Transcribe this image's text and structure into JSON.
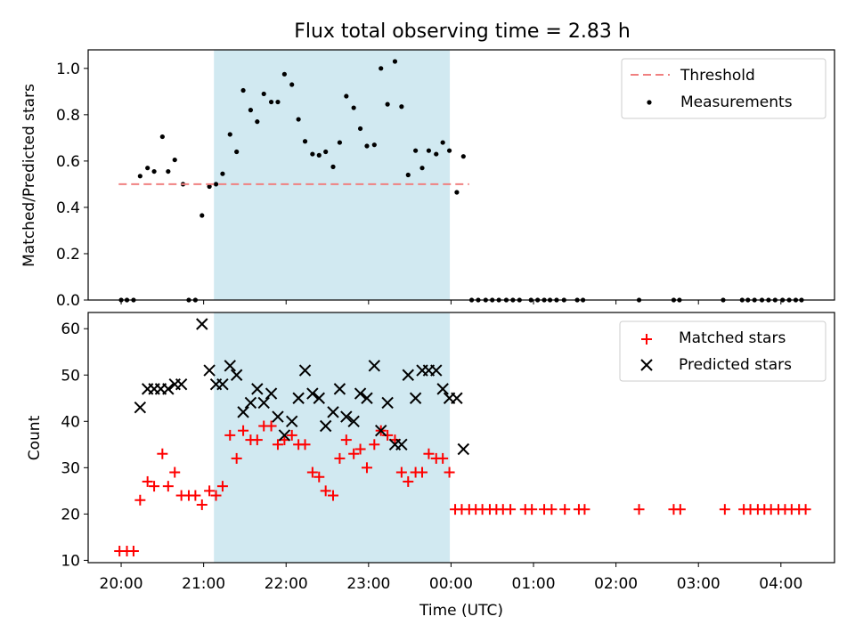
{
  "title": "Flux total observing time = 2.83 h",
  "colors": {
    "threshold": "#f08080",
    "measurements": "#000000",
    "matched": "#ff0000",
    "predicted": "#000000",
    "shade": "#add8e6"
  },
  "chart_data": [
    {
      "type": "scatter",
      "ylabel": "Matched/Predicted stars",
      "ylim": [
        0,
        1.08
      ],
      "yticks": [
        "0.0",
        "0.2",
        "0.4",
        "0.6",
        "0.8",
        "1.0"
      ],
      "legend_position": "top-right",
      "shaded_interval_hours": [
        21.13,
        23.98
      ],
      "threshold": {
        "name": "Threshold",
        "value": 0.5,
        "x_range": [
          19.97,
          24.22
        ]
      },
      "series": [
        {
          "name": "Measurements",
          "points": [
            [
              20.0,
              0
            ],
            [
              20.07,
              0
            ],
            [
              20.15,
              0
            ],
            [
              20.23,
              0.535
            ],
            [
              20.32,
              0.57
            ],
            [
              20.4,
              0.555
            ],
            [
              20.5,
              0.705
            ],
            [
              20.57,
              0.555
            ],
            [
              20.65,
              0.605
            ],
            [
              20.75,
              0.5
            ],
            [
              20.82,
              0
            ],
            [
              20.9,
              0
            ],
            [
              20.98,
              0.365
            ],
            [
              21.07,
              0.49
            ],
            [
              21.15,
              0.5
            ],
            [
              21.23,
              0.545
            ],
            [
              21.32,
              0.715
            ],
            [
              21.4,
              0.64
            ],
            [
              21.48,
              0.905
            ],
            [
              21.57,
              0.82
            ],
            [
              21.65,
              0.77
            ],
            [
              21.73,
              0.89
            ],
            [
              21.82,
              0.855
            ],
            [
              21.9,
              0.855
            ],
            [
              21.98,
              0.975
            ],
            [
              22.07,
              0.93
            ],
            [
              22.15,
              0.78
            ],
            [
              22.23,
              0.685
            ],
            [
              22.32,
              0.63
            ],
            [
              22.4,
              0.625
            ],
            [
              22.48,
              0.64
            ],
            [
              22.57,
              0.575
            ],
            [
              22.65,
              0.68
            ],
            [
              22.73,
              0.88
            ],
            [
              22.82,
              0.83
            ],
            [
              22.9,
              0.74
            ],
            [
              22.98,
              0.665
            ],
            [
              23.07,
              0.67
            ],
            [
              23.15,
              1.0
            ],
            [
              23.23,
              0.845
            ],
            [
              23.32,
              1.03
            ],
            [
              23.4,
              0.835
            ],
            [
              23.48,
              0.54
            ],
            [
              23.57,
              0.645
            ],
            [
              23.65,
              0.57
            ],
            [
              23.73,
              0.645
            ],
            [
              23.82,
              0.63
            ],
            [
              23.9,
              0.68
            ],
            [
              23.98,
              0.645
            ],
            [
              24.07,
              0.465
            ],
            [
              24.15,
              0.62
            ],
            [
              24.25,
              0
            ],
            [
              24.33,
              0
            ],
            [
              24.42,
              0
            ],
            [
              24.5,
              0
            ],
            [
              24.58,
              0
            ],
            [
              24.67,
              0
            ],
            [
              24.75,
              0
            ],
            [
              24.83,
              0
            ],
            [
              24.97,
              0
            ],
            [
              25.05,
              0
            ],
            [
              25.13,
              0
            ],
            [
              25.2,
              0
            ],
            [
              25.28,
              0
            ],
            [
              25.37,
              0
            ],
            [
              25.53,
              0
            ],
            [
              25.6,
              0
            ],
            [
              26.28,
              0
            ],
            [
              26.7,
              0
            ],
            [
              26.77,
              0
            ],
            [
              27.3,
              0
            ],
            [
              27.53,
              0
            ],
            [
              27.6,
              0
            ],
            [
              27.68,
              0
            ],
            [
              27.77,
              0
            ],
            [
              27.85,
              0
            ],
            [
              27.93,
              0
            ],
            [
              28.02,
              0
            ],
            [
              28.1,
              0
            ],
            [
              28.18,
              0
            ],
            [
              28.25,
              0
            ]
          ]
        }
      ]
    },
    {
      "type": "scatter",
      "xlabel": "Time (UTC)",
      "ylabel": "Count",
      "ylim": [
        9.5,
        63.5
      ],
      "yticks": [
        "10",
        "20",
        "30",
        "40",
        "50",
        "60"
      ],
      "xticks": [
        "20:00",
        "21:00",
        "22:00",
        "23:00",
        "00:00",
        "01:00",
        "02:00",
        "03:00",
        "04:00"
      ],
      "xlim_hours": [
        19.6,
        28.65
      ],
      "legend_position": "top-right",
      "shaded_interval_hours": [
        21.13,
        23.98
      ],
      "series": [
        {
          "name": "Matched stars",
          "points": [
            [
              19.98,
              12
            ],
            [
              20.07,
              12
            ],
            [
              20.15,
              12
            ],
            [
              20.23,
              23
            ],
            [
              20.32,
              27
            ],
            [
              20.4,
              26
            ],
            [
              20.5,
              33
            ],
            [
              20.57,
              26
            ],
            [
              20.65,
              29
            ],
            [
              20.73,
              24
            ],
            [
              20.82,
              24
            ],
            [
              20.9,
              24
            ],
            [
              20.98,
              22
            ],
            [
              21.07,
              25
            ],
            [
              21.15,
              24
            ],
            [
              21.23,
              26
            ],
            [
              21.32,
              37
            ],
            [
              21.4,
              32
            ],
            [
              21.48,
              38
            ],
            [
              21.57,
              36
            ],
            [
              21.65,
              36
            ],
            [
              21.73,
              39
            ],
            [
              21.82,
              39
            ],
            [
              21.9,
              35
            ],
            [
              21.98,
              36
            ],
            [
              22.07,
              37
            ],
            [
              22.15,
              35
            ],
            [
              22.23,
              35
            ],
            [
              22.32,
              29
            ],
            [
              22.4,
              28
            ],
            [
              22.48,
              25
            ],
            [
              22.57,
              24
            ],
            [
              22.65,
              32
            ],
            [
              22.73,
              36
            ],
            [
              22.82,
              33
            ],
            [
              22.9,
              34
            ],
            [
              22.98,
              30
            ],
            [
              23.07,
              35
            ],
            [
              23.15,
              38
            ],
            [
              23.23,
              37
            ],
            [
              23.32,
              36
            ],
            [
              23.4,
              29
            ],
            [
              23.48,
              27
            ],
            [
              23.57,
              29
            ],
            [
              23.65,
              29
            ],
            [
              23.73,
              33
            ],
            [
              23.82,
              32
            ],
            [
              23.9,
              32
            ],
            [
              23.98,
              29
            ],
            [
              24.05,
              21
            ],
            [
              24.13,
              21
            ],
            [
              24.22,
              21
            ],
            [
              24.3,
              21
            ],
            [
              24.38,
              21
            ],
            [
              24.47,
              21
            ],
            [
              24.55,
              21
            ],
            [
              24.63,
              21
            ],
            [
              24.72,
              21
            ],
            [
              24.9,
              21
            ],
            [
              24.98,
              21
            ],
            [
              25.13,
              21
            ],
            [
              25.22,
              21
            ],
            [
              25.38,
              21
            ],
            [
              25.55,
              21
            ],
            [
              25.62,
              21
            ],
            [
              26.28,
              21
            ],
            [
              26.7,
              21
            ],
            [
              26.78,
              21
            ],
            [
              27.32,
              21
            ],
            [
              27.55,
              21
            ],
            [
              27.63,
              21
            ],
            [
              27.72,
              21
            ],
            [
              27.8,
              21
            ],
            [
              27.88,
              21
            ],
            [
              27.97,
              21
            ],
            [
              28.05,
              21
            ],
            [
              28.13,
              21
            ],
            [
              28.22,
              21
            ],
            [
              28.3,
              21
            ]
          ]
        },
        {
          "name": "Predicted stars",
          "points": [
            [
              20.23,
              43
            ],
            [
              20.32,
              47
            ],
            [
              20.4,
              47
            ],
            [
              20.48,
              47
            ],
            [
              20.57,
              47
            ],
            [
              20.65,
              48
            ],
            [
              20.73,
              48
            ],
            [
              20.98,
              61
            ],
            [
              21.07,
              51
            ],
            [
              21.15,
              48
            ],
            [
              21.23,
              48
            ],
            [
              21.32,
              52
            ],
            [
              21.4,
              50
            ],
            [
              21.48,
              42
            ],
            [
              21.57,
              44
            ],
            [
              21.65,
              47
            ],
            [
              21.73,
              44
            ],
            [
              21.82,
              46
            ],
            [
              21.9,
              41
            ],
            [
              21.98,
              37
            ],
            [
              22.07,
              40
            ],
            [
              22.15,
              45
            ],
            [
              22.23,
              51
            ],
            [
              22.32,
              46
            ],
            [
              22.4,
              45
            ],
            [
              22.48,
              39
            ],
            [
              22.57,
              42
            ],
            [
              22.65,
              47
            ],
            [
              22.73,
              41
            ],
            [
              22.82,
              40
            ],
            [
              22.9,
              46
            ],
            [
              22.98,
              45
            ],
            [
              23.07,
              52
            ],
            [
              23.15,
              38
            ],
            [
              23.23,
              44
            ],
            [
              23.32,
              35
            ],
            [
              23.4,
              35
            ],
            [
              23.48,
              50
            ],
            [
              23.57,
              45
            ],
            [
              23.65,
              51
            ],
            [
              23.73,
              51
            ],
            [
              23.82,
              51
            ],
            [
              23.9,
              47
            ],
            [
              23.98,
              45
            ],
            [
              24.07,
              45
            ],
            [
              24.15,
              34
            ]
          ]
        }
      ]
    }
  ]
}
